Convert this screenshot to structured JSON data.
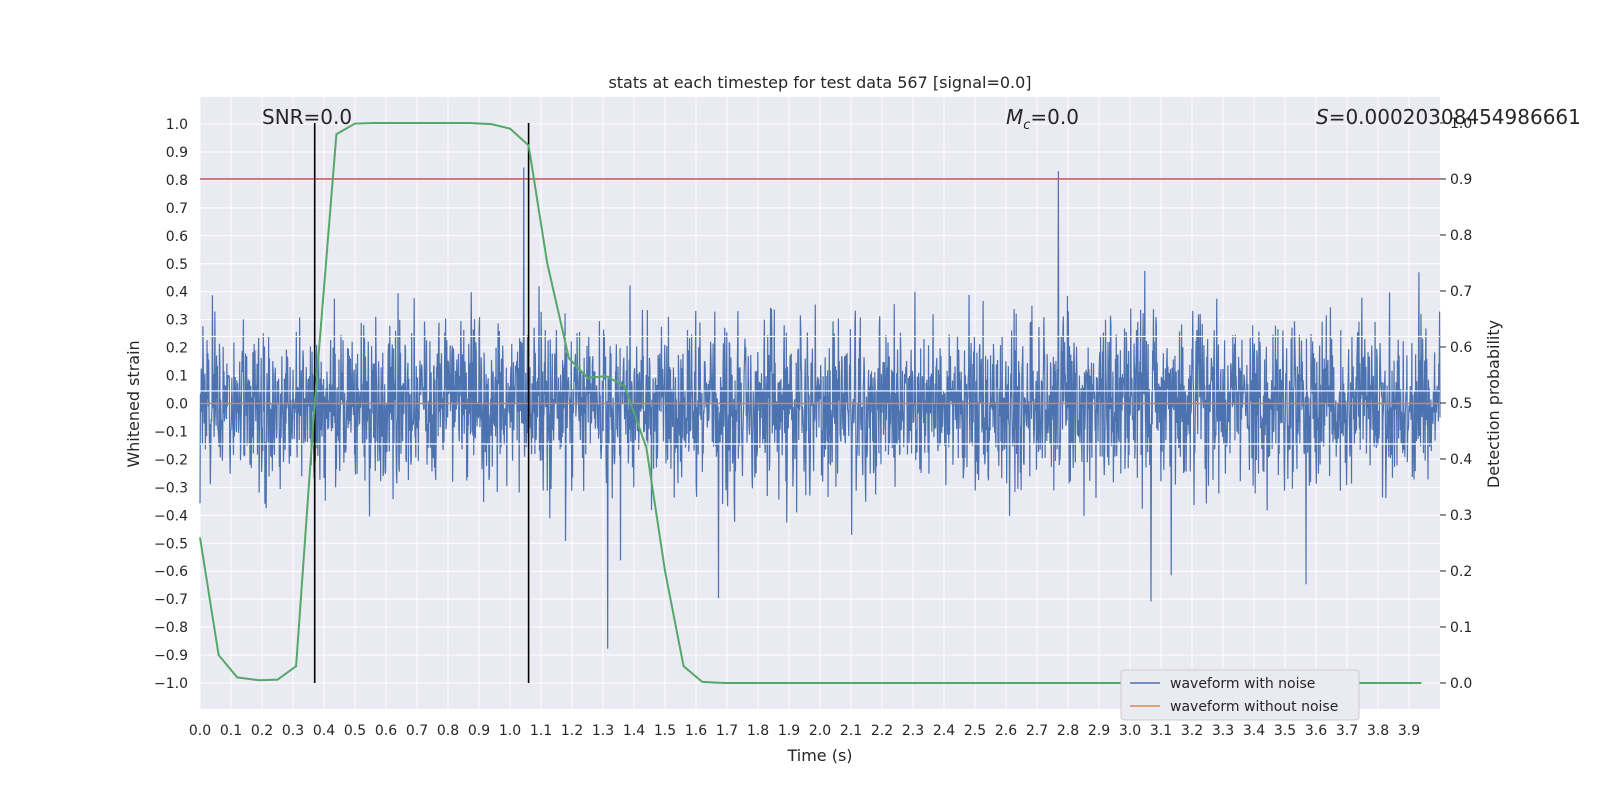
{
  "chart_data": {
    "type": "line",
    "title": "stats at each timestep for test data 567 [signal=0.0]",
    "xlabel": "Time (s)",
    "ylabel": "Whitened strain",
    "ylabel_right": "Detection probability",
    "xlim": [
      0.0,
      4.0
    ],
    "ylim": [
      -1.0,
      1.0
    ],
    "ylim_right": [
      0.0,
      1.0
    ],
    "x_ticks": [
      "0.0",
      "0.1",
      "0.2",
      "0.3",
      "0.4",
      "0.5",
      "0.6",
      "0.7",
      "0.8",
      "0.9",
      "1.0",
      "1.1",
      "1.2",
      "1.3",
      "1.4",
      "1.5",
      "1.6",
      "1.7",
      "1.8",
      "1.9",
      "2.0",
      "2.1",
      "2.2",
      "2.3",
      "2.4",
      "2.5",
      "2.6",
      "2.7",
      "2.8",
      "2.9",
      "3.0",
      "3.1",
      "3.2",
      "3.3",
      "3.4",
      "3.5",
      "3.6",
      "3.7",
      "3.8",
      "3.9"
    ],
    "y_ticks_left": [
      "1.0",
      "0.9",
      "0.8",
      "0.7",
      "0.6",
      "0.5",
      "0.4",
      "0.3",
      "0.2",
      "0.1",
      "0.0",
      "−0.1",
      "−0.2",
      "−0.3",
      "−0.4",
      "−0.5",
      "−0.6",
      "−0.7",
      "−0.8",
      "−0.9",
      "−1.0"
    ],
    "y_ticks_right": [
      "1.0",
      "0.9",
      "0.8",
      "0.7",
      "0.6",
      "0.5",
      "0.4",
      "0.3",
      "0.2",
      "0.1",
      "0.0"
    ],
    "annotations": {
      "snr": "SNR=0.0",
      "mc_symbol": "M",
      "mc_sub": "c",
      "mc_value": "=0.0",
      "s_symbol": "S",
      "s_value": "=0.00020308454986661"
    },
    "threshold_right": 0.9,
    "markers_x": [
      0.37,
      1.06
    ],
    "series": [
      {
        "name": "waveform with noise",
        "color": "#4c72b0",
        "axis": "left",
        "description": "dense noisy whitened strain, roughly within ±0.9"
      },
      {
        "name": "waveform without noise",
        "color": "#dd8452",
        "axis": "left",
        "x": [
          0.0,
          4.0
        ],
        "y": [
          0.0,
          0.0
        ]
      },
      {
        "name": "detection probability",
        "color": "#55a868",
        "axis": "right",
        "x": [
          0.0,
          0.06,
          0.12,
          0.19,
          0.25,
          0.31,
          0.37,
          0.44,
          0.5,
          0.56,
          0.62,
          0.69,
          0.75,
          0.81,
          0.87,
          0.94,
          1.0,
          1.06,
          1.12,
          1.19,
          1.25,
          1.31,
          1.37,
          1.44,
          1.5,
          1.56,
          1.62,
          1.69,
          1.75,
          3.94
        ],
        "y": [
          0.26,
          0.05,
          0.01,
          0.005,
          0.006,
          0.03,
          0.5,
          0.98,
          0.999,
          1.0,
          1.0,
          1.0,
          1.0,
          1.0,
          1.0,
          0.998,
          0.99,
          0.96,
          0.75,
          0.58,
          0.545,
          0.548,
          0.53,
          0.42,
          0.2,
          0.03,
          0.002,
          0.0,
          0.0,
          0.0
        ]
      },
      {
        "name": "threshold",
        "color": "#c44e52",
        "axis": "right",
        "x": [
          0.0,
          4.0
        ],
        "y": [
          0.9,
          0.9
        ]
      }
    ],
    "legend": {
      "position": "lower-right",
      "entries": [
        {
          "label": "waveform with noise",
          "color": "#4c72b0"
        },
        {
          "label": "waveform without noise",
          "color": "#dd8452"
        }
      ]
    }
  }
}
